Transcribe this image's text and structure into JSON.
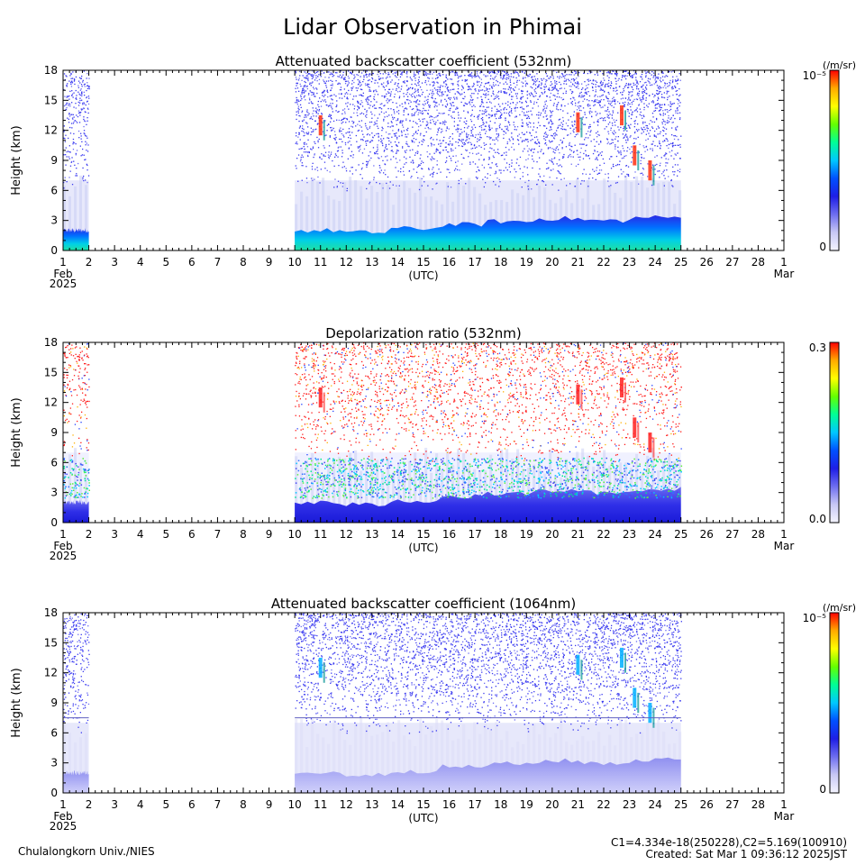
{
  "figure": {
    "title": "Lidar Observation in Phimai",
    "credit": "Chulalongkorn Univ./NIES",
    "calibration": "C1=4.334e-18(250228),C2=5.169(100910)",
    "created": "Created: Sat Mar  1 09:36:12 2025JST"
  },
  "colors": {
    "colorbar": [
      "#f4f4ff",
      "#c8c8f5",
      "#6e6ef0",
      "#1e1ee6",
      "#0050ff",
      "#00c8ff",
      "#00ff96",
      "#64ff00",
      "#ffff00",
      "#ffaa00",
      "#ff0000"
    ],
    "panel_frame": "#000000"
  },
  "chart_data": [
    {
      "type": "heatmap",
      "title": "Attenuated backscatter coefficient (532nm)",
      "ylabel": "Height (km)",
      "xlabel": "(UTC)",
      "x_ticks": [
        "1",
        "2",
        "3",
        "4",
        "5",
        "6",
        "7",
        "8",
        "9",
        "10",
        "11",
        "12",
        "13",
        "14",
        "15",
        "16",
        "17",
        "18",
        "19",
        "20",
        "21",
        "22",
        "23",
        "24",
        "25",
        "26",
        "27",
        "28",
        "1"
      ],
      "x_start_labels": [
        "Feb",
        "2025"
      ],
      "x_end_label": "Mar",
      "y_ticks": [
        "0",
        "3",
        "6",
        "9",
        "12",
        "15",
        "18"
      ],
      "ylim": [
        0,
        18
      ],
      "xlim_days": [
        1,
        29
      ],
      "data_intervals_day": [
        [
          1,
          2
        ],
        [
          10,
          25
        ]
      ],
      "colorbar": {
        "unit": "(/m/sr)",
        "max_label": "10⁻⁵",
        "min_label": "0"
      },
      "features": {
        "boundary_layer_top_km": [
          2.0,
          1.8,
          2.2,
          2.6,
          2.9,
          3.2,
          3.0,
          3.3,
          3.5
        ],
        "cirrus_km": [
          [
            11.0,
            12.5
          ],
          [
            21.0,
            12.8
          ],
          [
            22.7,
            13.5
          ],
          [
            23.2,
            9.5
          ],
          [
            23.8,
            8.0
          ]
        ]
      }
    },
    {
      "type": "heatmap",
      "title": "Depolarization ratio (532nm)",
      "ylabel": "Height (km)",
      "xlabel": "(UTC)",
      "x_ticks": [
        "1",
        "2",
        "3",
        "4",
        "5",
        "6",
        "7",
        "8",
        "9",
        "10",
        "11",
        "12",
        "13",
        "14",
        "15",
        "16",
        "17",
        "18",
        "19",
        "20",
        "21",
        "22",
        "23",
        "24",
        "25",
        "26",
        "27",
        "28",
        "1"
      ],
      "x_start_labels": [
        "Feb",
        "2025"
      ],
      "x_end_label": "Mar",
      "y_ticks": [
        "0",
        "3",
        "6",
        "9",
        "12",
        "15",
        "18"
      ],
      "ylim": [
        0,
        18
      ],
      "xlim_days": [
        1,
        29
      ],
      "data_intervals_day": [
        [
          1,
          2
        ],
        [
          10,
          25
        ]
      ],
      "colorbar": {
        "unit": "",
        "max_label": "0.3",
        "min_label": "0.0"
      },
      "features": {
        "boundary_layer_top_km": [
          2.0,
          1.8,
          2.2,
          2.6,
          2.9,
          3.2,
          3.0,
          3.3,
          3.5
        ],
        "cirrus_km": [
          [
            11.0,
            12.5
          ],
          [
            21.0,
            12.8
          ],
          [
            22.7,
            13.5
          ],
          [
            23.2,
            9.5
          ],
          [
            23.8,
            8.0
          ]
        ]
      }
    },
    {
      "type": "heatmap",
      "title": "Attenuated backscatter coefficient (1064nm)",
      "ylabel": "Height (km)",
      "xlabel": "(UTC)",
      "x_ticks": [
        "1",
        "2",
        "3",
        "4",
        "5",
        "6",
        "7",
        "8",
        "9",
        "10",
        "11",
        "12",
        "13",
        "14",
        "15",
        "16",
        "17",
        "18",
        "19",
        "20",
        "21",
        "22",
        "23",
        "24",
        "25",
        "26",
        "27",
        "28",
        "1"
      ],
      "x_start_labels": [
        "Feb",
        "2025"
      ],
      "x_end_label": "Mar",
      "y_ticks": [
        "0",
        "3",
        "6",
        "9",
        "12",
        "15",
        "18"
      ],
      "ylim": [
        0,
        18
      ],
      "xlim_days": [
        1,
        29
      ],
      "data_intervals_day": [
        [
          1,
          2
        ],
        [
          10,
          25
        ]
      ],
      "colorbar": {
        "unit": "(/m/sr)",
        "max_label": "10⁻⁵",
        "min_label": "0"
      },
      "features": {
        "boundary_layer_top_km": [
          2.0,
          1.8,
          2.2,
          2.6,
          2.9,
          3.2,
          3.0,
          3.3,
          3.5
        ],
        "cirrus_km": [
          [
            11.0,
            12.5
          ],
          [
            21.0,
            12.8
          ],
          [
            22.7,
            13.5
          ],
          [
            23.2,
            9.5
          ],
          [
            23.8,
            8.0
          ]
        ],
        "artifact_line_km": 7.5
      }
    }
  ]
}
